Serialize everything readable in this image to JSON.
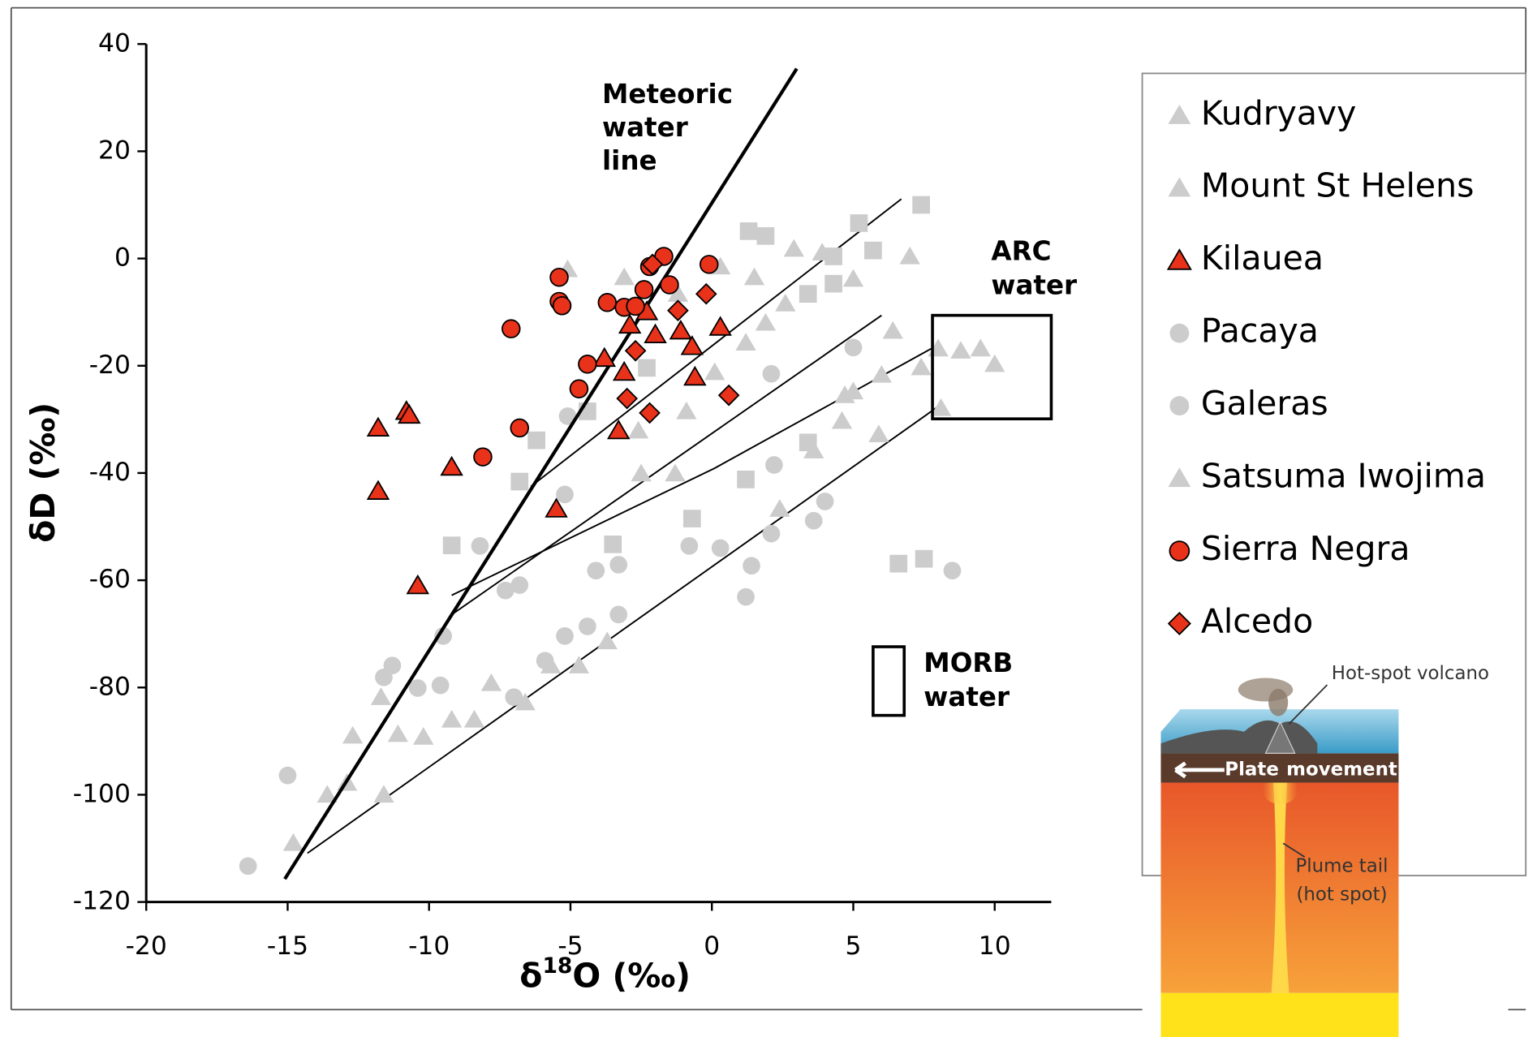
{
  "chart_data": {
    "type": "scatter",
    "xlabel": [
      "δ",
      "18",
      "O (‰)"
    ],
    "ylabel": "δD (‰)",
    "xlim": [
      -20,
      12
    ],
    "ylim": [
      -120,
      40
    ],
    "xticks": [
      -20,
      -15,
      -10,
      -5,
      0,
      5,
      10
    ],
    "yticks": [
      -120,
      -100,
      -80,
      -60,
      -40,
      -20,
      0,
      20,
      40
    ],
    "series": [
      {
        "name": "Kudryavy",
        "color": "#cccccc",
        "marker": "triangle",
        "x": [
          -5.1,
          -3.1,
          -1.2,
          0.3,
          1.5,
          2.9,
          3.9,
          7.0,
          5.0,
          2.6,
          1.9,
          1.2,
          0.1,
          -0.9,
          -2.6
        ],
        "y": [
          -2,
          -3.5,
          -6.6,
          -1.5,
          -3.5,
          1.8,
          1.1,
          0.4,
          -3.8,
          -8.4,
          -12,
          -15.7,
          -21.2,
          -28.5,
          -32.1
        ]
      },
      {
        "name": "Mount St Helens",
        "color": "#cccccc",
        "marker": "triangle",
        "x": [
          -14.8,
          -13.6,
          -12.9,
          -12.7,
          -11.7,
          -11.1,
          -10.2,
          -9.2,
          -8.4,
          -7.8,
          -6.6,
          -5.7,
          -4.7,
          -3.7,
          -11.6
        ],
        "y": [
          -109,
          -100,
          -97.8,
          -89,
          -81.8,
          -88.7,
          -89.2,
          -86,
          -86,
          -79.2,
          -82.8,
          -75.9,
          -75.9,
          -71.4,
          -100
        ]
      },
      {
        "name": "Kilauea",
        "color": "#e8321a",
        "edgecolor": "#000000",
        "marker": "triangle",
        "x": [
          -11.8,
          -11.8,
          -10.8,
          -10.7,
          -10.4,
          -9.2,
          -5.5,
          -3.8,
          -3.3,
          -3.1,
          -2.9,
          -2.0,
          -1.1,
          -0.7,
          -0.6,
          0.3,
          -2.3
        ],
        "y": [
          -31.6,
          -43.4,
          -28.5,
          -29.2,
          -61,
          -38.9,
          -46.7,
          -18.6,
          -32.1,
          -21.2,
          -12.4,
          -14.2,
          -13.5,
          -16.4,
          -22.1,
          -12.8,
          -9.9
        ]
      },
      {
        "name": "Pacaya",
        "color": "#cccccc",
        "marker": "circle",
        "x": [
          -15,
          -16.4,
          -11.6,
          -11.3,
          -10.4,
          -9.6,
          -9.5,
          -7,
          -5.9,
          -5.2,
          -4.4,
          -3.3,
          -4.1,
          -3.3,
          1.2
        ],
        "y": [
          -96.4,
          -113.3,
          -78.1,
          -75.9,
          -80.1,
          -79.6,
          -70.4,
          -81.8,
          -75,
          -70.4,
          -68.6,
          -66.4,
          -58.2,
          -57.1,
          -63.1
        ]
      },
      {
        "name": "Galeras",
        "color": "#cccccc",
        "marker": "circle",
        "x": [
          -8.2,
          -7.3,
          -6.8,
          -5.2,
          -0.8,
          0.3,
          1.4,
          2.1,
          2.2,
          3.6,
          4.0,
          2.1,
          5.0,
          8.5,
          -5.1
        ],
        "y": [
          -53.6,
          -61.9,
          -60.9,
          -44,
          -53.6,
          -54,
          -57.3,
          -51.3,
          -38.5,
          -48.9,
          -45.3,
          -21.5,
          -16.6,
          -58.2,
          -29.4
        ]
      },
      {
        "name": "Satsuma Iwojima",
        "color": "#cccccc",
        "marker": "triangle",
        "x": [
          6.4,
          8.0,
          8.8,
          9.5,
          10.0,
          7.4,
          6.0,
          5.0,
          4.7,
          5.9,
          4.6,
          3.6,
          2.4,
          -1.3,
          -2.5,
          8.1
        ],
        "y": [
          -13.5,
          -16.8,
          -17.2,
          -16.8,
          -19.7,
          -20.3,
          -21.7,
          -24.8,
          -25.5,
          -32.8,
          -30.3,
          -35.8,
          -46.7,
          -40.1,
          -40.1,
          -27.9
        ]
      },
      {
        "name": "Sierra Negra",
        "color": "#e8321a",
        "edgecolor": "#000000",
        "marker": "circle",
        "x": [
          -7.1,
          -6.8,
          -8.1,
          -5.4,
          -5.4,
          -5.3,
          -4.7,
          -3.7,
          -3.1,
          -2.7,
          -2.4,
          -2.2,
          -1.7,
          -1.5,
          -0.1,
          -4.4
        ],
        "y": [
          -13.1,
          -31.6,
          -37,
          -3.5,
          -8,
          -8.8,
          -24.3,
          -8.2,
          -9.1,
          -8.9,
          -5.8,
          -1.5,
          0.4,
          -4.9,
          -1.1,
          -19.7
        ]
      },
      {
        "name": "Alcedo",
        "color": "#e8321a",
        "edgecolor": "#000000",
        "marker": "diamond",
        "x": [
          -3.0,
          -2.2,
          -2.1,
          -1.2,
          -0.2,
          0.6,
          -2.7
        ],
        "y": [
          -26.1,
          -28.8,
          -1.1,
          -9.7,
          -6.6,
          -25.5,
          -17.2
        ]
      },
      {
        "color": "#cccccc",
        "marker": "square",
        "x": [
          7.4,
          5.2,
          1.3,
          1.9,
          5.7,
          4.3,
          4.3,
          3.4,
          6.6,
          7.5,
          -3.5,
          -9.2,
          -6.8,
          1.2,
          -0.7,
          -4.4,
          -2.3,
          3.4,
          -6.2
        ],
        "y": [
          10,
          6.6,
          5.1,
          4.2,
          1.5,
          0.4,
          -4.7,
          -6.6,
          -56.9,
          -56,
          -53.3,
          -53.5,
          -41.6,
          -41.2,
          -48.5,
          -28.5,
          -20.4,
          -34.3,
          -33.9
        ]
      }
    ],
    "meteoric_line": {
      "label": [
        "Meteoric",
        "water",
        "line"
      ],
      "x": [
        -15.1,
        3.0
      ],
      "y": [
        -115.7,
        35.4
      ]
    },
    "mixing_lines": [
      {
        "x": [
          -6.4,
          6.7
        ],
        "y": [
          -42.5,
          11.1
        ]
      },
      {
        "x": [
          -9.2,
          6.0
        ],
        "y": [
          -66.4,
          -10.6
        ]
      },
      {
        "x": [
          -9.2,
          0.1,
          8.0
        ],
        "y": [
          -62.8,
          -39.1,
          -16.1
        ]
      },
      {
        "x": [
          -14.3,
          8.0
        ],
        "y": [
          -110.9,
          -27.6
        ]
      }
    ],
    "boxes": [
      {
        "label": [
          "ARC",
          "water"
        ],
        "xlim": [
          7.8,
          12.0
        ],
        "ylim": [
          -29.9,
          -10.6
        ]
      },
      {
        "label": [
          "MORB",
          "water"
        ],
        "xlim": [
          5.7,
          6.8
        ],
        "ylim": [
          -85.2,
          -72.4
        ]
      }
    ]
  },
  "inset": {
    "labels": [
      "Hot-spot volcano",
      "Plate",
      "movement",
      "Plume tail",
      "(hot spot)"
    ]
  }
}
